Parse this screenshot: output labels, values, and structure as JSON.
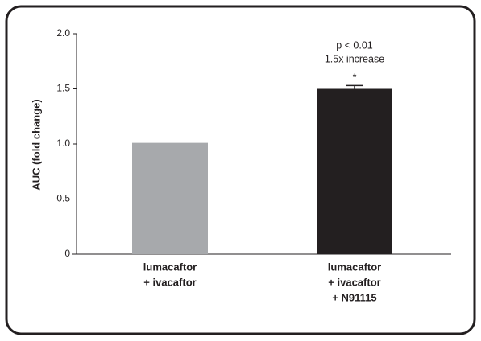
{
  "chart_data": {
    "type": "bar",
    "ylabel": "AUC (fold change)",
    "categories": [
      [
        "lumacaftor",
        "+ ivacaftor"
      ],
      [
        "lumacaftor",
        "+ ivacaftor",
        "+ N91115"
      ]
    ],
    "values": [
      1.01,
      1.5
    ],
    "errors": [
      null,
      0.03
    ],
    "colors": [
      "#a7a9ac",
      "#231f20"
    ],
    "annotations": [
      "p < 0.01",
      "1.5x increase",
      "*"
    ],
    "ylim": [
      0,
      2
    ],
    "yticks": [
      0,
      0.5,
      {
        "value": 1,
        "label": "1.0"
      },
      1.5,
      {
        "value": 2,
        "label": "2.0"
      }
    ]
  }
}
